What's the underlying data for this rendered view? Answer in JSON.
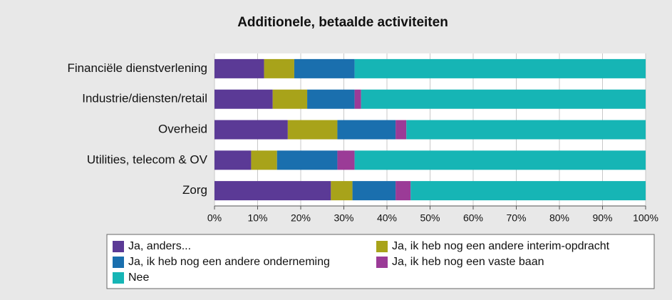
{
  "chart_data": {
    "type": "bar",
    "title": "Additionele, betaalde activiteiten",
    "categories": [
      "Financiële dienstverlening",
      "Industrie/diensten/retail",
      "Overheid",
      "Utilities, telecom & OV",
      "Zorg"
    ],
    "series": [
      {
        "name": "Ja, anders...",
        "color": "#5b3a96",
        "values": [
          11.5,
          13.5,
          17,
          8.5,
          27
        ]
      },
      {
        "name": "Ja, ik heb nog een andere interim-opdracht",
        "color": "#a8a31a",
        "values": [
          7,
          8,
          11.5,
          6,
          5
        ]
      },
      {
        "name": "Ja, ik heb nog een andere onderneming",
        "color": "#1a6fae",
        "values": [
          14,
          11,
          13.5,
          14,
          10
        ]
      },
      {
        "name": "Ja, ik heb nog een vaste baan",
        "color": "#9b3b97",
        "values": [
          0,
          1.5,
          2.5,
          4,
          3.5
        ]
      },
      {
        "name": "Nee",
        "color": "#16b5b5",
        "values": [
          67.5,
          66,
          55.5,
          67.5,
          54.5
        ]
      }
    ],
    "xlim": [
      0,
      100
    ],
    "xticks": [
      {
        "value": 0,
        "label": "0%"
      },
      {
        "value": 10,
        "label": "10%"
      },
      {
        "value": 20,
        "label": "20%"
      },
      {
        "value": 30,
        "label": "30%"
      },
      {
        "value": 40,
        "label": "40%"
      },
      {
        "value": 50,
        "label": "50%"
      },
      {
        "value": 60,
        "label": "60%"
      },
      {
        "value": 70,
        "label": "70%"
      },
      {
        "value": 80,
        "label": "80%"
      },
      {
        "value": 90,
        "label": "90%"
      },
      {
        "value": 100,
        "label": "100%"
      }
    ],
    "grid": true
  }
}
